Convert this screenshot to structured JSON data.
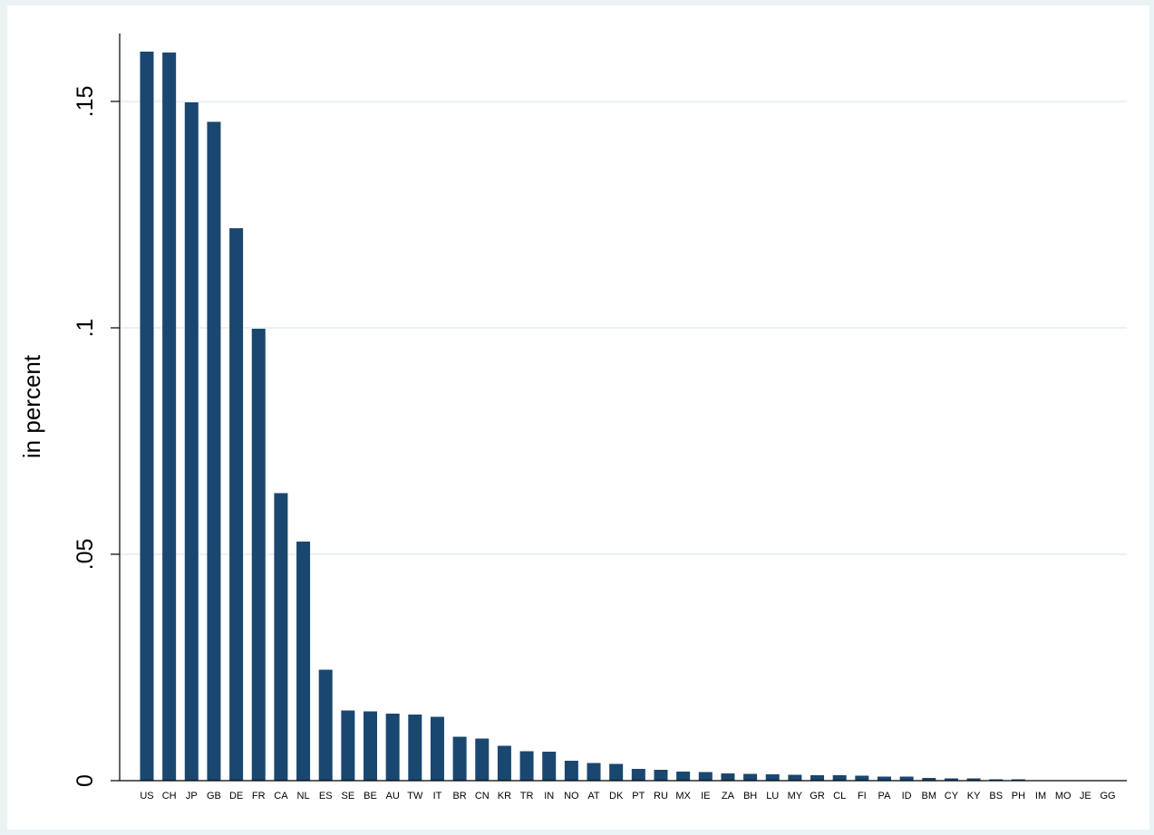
{
  "chart_data": {
    "type": "bar",
    "title": "",
    "xlabel": "",
    "ylabel": "in percent",
    "ylim": [
      0,
      0.165
    ],
    "yticks": [
      0,
      0.05,
      0.1,
      0.15
    ],
    "ytick_labels": [
      "0",
      ".05",
      ".1",
      ".15"
    ],
    "grid": true,
    "legend": "none",
    "categories": [
      "US",
      "CH",
      "JP",
      "GB",
      "DE",
      "FR",
      "CA",
      "NL",
      "ES",
      "SE",
      "BE",
      "AU",
      "TW",
      "IT",
      "BR",
      "CN",
      "KR",
      "TR",
      "IN",
      "NO",
      "AT",
      "DK",
      "PT",
      "RU",
      "MX",
      "IE",
      "ZA",
      "BH",
      "LU",
      "MY",
      "GR",
      "CL",
      "FI",
      "PA",
      "ID",
      "BM",
      "CY",
      "KY",
      "BS",
      "PH",
      "IM",
      "MO",
      "JE",
      "GG"
    ],
    "values": [
      0.161,
      0.1608,
      0.1498,
      0.1455,
      0.122,
      0.0998,
      0.0635,
      0.0528,
      0.0245,
      0.0155,
      0.0153,
      0.0148,
      0.0146,
      0.0141,
      0.0097,
      0.0093,
      0.0077,
      0.0065,
      0.0064,
      0.0044,
      0.0039,
      0.0037,
      0.0026,
      0.0024,
      0.002,
      0.0019,
      0.0016,
      0.0015,
      0.0014,
      0.0013,
      0.0012,
      0.0012,
      0.0011,
      0.0009,
      0.0009,
      0.0006,
      0.0005,
      0.0005,
      0.0003,
      0.0003,
      0.0001,
      0.0001,
      0.0001,
      0.0001
    ],
    "colors": {
      "bar": "#1a476f",
      "grid": "#eaf2f3",
      "plot_bg": "#ffffff",
      "outer_bg": "#eaf2f3",
      "axis": "#000000"
    }
  }
}
